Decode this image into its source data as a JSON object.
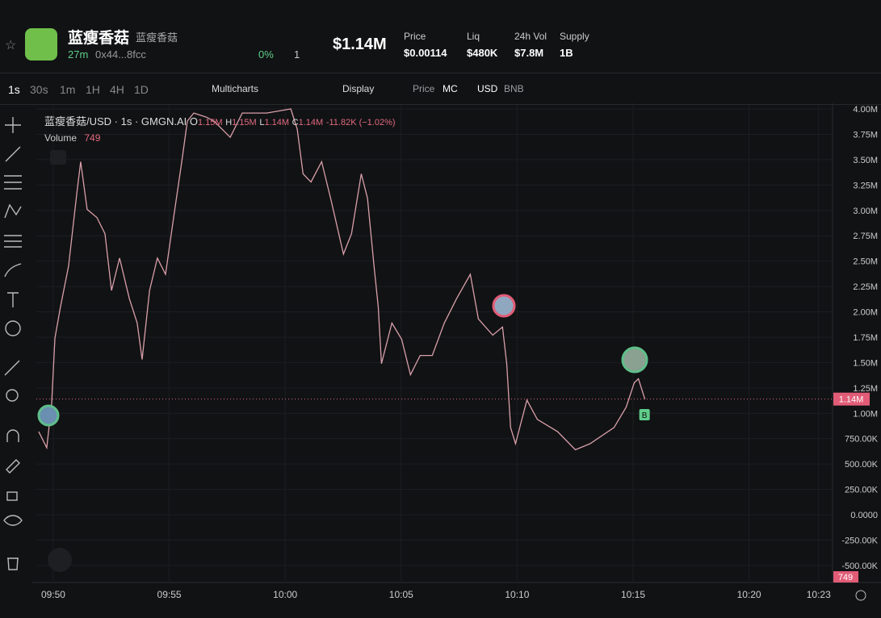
{
  "header": {
    "token_name": "蓝瘦香菇",
    "token_alias": "蓝瘦香菇",
    "age": "27m",
    "address": "0x44...8fcc",
    "holders_change": "0%",
    "count": "1",
    "market_cap": "$1.14M",
    "stats": [
      {
        "label": "Price",
        "value": "$0.00114"
      },
      {
        "label": "Liq",
        "value": "$480K"
      },
      {
        "label": "24h Vol",
        "value": "$7.8M"
      },
      {
        "label": "Supply",
        "value": "1B"
      }
    ]
  },
  "toolbar": {
    "intervals": [
      "1s",
      "30s",
      "1m",
      "1H",
      "4H",
      "1D"
    ],
    "multicharts": "Multicharts",
    "display": "Display",
    "price": "Price",
    "mc": "MC",
    "usd": "USD",
    "bnb": "BNB"
  },
  "legend": {
    "symbol": "蓝瘦香菇/USD · 1s · GMGN.AI",
    "o_label": "O",
    "o": "1.15M",
    "h_label": "H",
    "h": "1.15M",
    "l_label": "L",
    "l": "1.14M",
    "c_label": "C",
    "c": "1.14M",
    "change": "-11.82K (−1.02%)",
    "volume_label": "Volume",
    "volume": "749"
  },
  "chart_data": {
    "type": "line",
    "x": [
      -0.63,
      -0.28,
      -0.07,
      0.07,
      0.31,
      0.66,
      1.01,
      1.18,
      1.46,
      1.88,
      2.23,
      2.51,
      2.86,
      3.28,
      3.62,
      3.83,
      4.15,
      4.49,
      4.84,
      5.19,
      5.54,
      5.78,
      6.06,
      6.59,
      6.93,
      7.28,
      7.63,
      8.15,
      9.2,
      10.24,
      10.52,
      10.77,
      11.11,
      11.57,
      11.99,
      12.51,
      12.86,
      13.28,
      13.55,
      13.83,
      14.01,
      14.15,
      14.6,
      15.02,
      15.4,
      15.82,
      16.34,
      16.86,
      17.39,
      17.98,
      18.33,
      18.95,
      19.37,
      19.55,
      19.72,
      19.93,
      20.42,
      20.87,
      21.74,
      22.51,
      23.14,
      24.18,
      24.7,
      25.05,
      25.23,
      25.51
    ],
    "series": [
      {
        "color": "#d9a0aa",
        "values": [
          0.82,
          0.66,
          1.1,
          1.74,
          2.05,
          2.45,
          3.16,
          3.48,
          3.01,
          2.93,
          2.77,
          2.21,
          2.53,
          2.13,
          1.89,
          1.53,
          2.21,
          2.53,
          2.37,
          2.93,
          3.48,
          3.88,
          3.96,
          3.92,
          3.88,
          3.8,
          3.72,
          3.96,
          3.96,
          4.0,
          3.8,
          3.36,
          3.28,
          3.48,
          3.09,
          2.57,
          2.77,
          3.36,
          3.12,
          2.45,
          2.05,
          1.49,
          1.89,
          1.73,
          1.38,
          1.57,
          1.57,
          1.89,
          2.13,
          2.37,
          1.93,
          1.77,
          1.85,
          1.49,
          0.86,
          0.7,
          1.13,
          0.94,
          0.82,
          0.64,
          0.7,
          0.86,
          1.06,
          1.3,
          1.34,
          1.14
        ]
      }
    ],
    "xlim": [
      -0.73,
      33.6
    ],
    "xticks": [
      {
        "value": 0,
        "label": "09:50"
      },
      {
        "value": 5,
        "label": "09:55"
      },
      {
        "value": 10,
        "label": "10:00"
      },
      {
        "value": 15,
        "label": "10:05"
      },
      {
        "value": 20,
        "label": "10:10"
      },
      {
        "value": 25,
        "label": "10:15"
      },
      {
        "value": 30,
        "label": "10:20"
      },
      {
        "value": 33,
        "label": "10:23"
      }
    ],
    "ylim": [
      -0.668,
      4.056
    ],
    "yticks": [
      {
        "value": 4,
        "label": "4.00M"
      },
      {
        "value": 3.75,
        "label": "3.75M"
      },
      {
        "value": 3.5,
        "label": "3.50M"
      },
      {
        "value": 3.25,
        "label": "3.25M"
      },
      {
        "value": 3,
        "label": "3.00M"
      },
      {
        "value": 2.75,
        "label": "2.75M"
      },
      {
        "value": 2.5,
        "label": "2.50M"
      },
      {
        "value": 2.25,
        "label": "2.25M"
      },
      {
        "value": 2,
        "label": "2.00M"
      },
      {
        "value": 1.75,
        "label": "1.75M"
      },
      {
        "value": 1.5,
        "label": "1.50M"
      },
      {
        "value": 1.25,
        "label": "1.25M"
      },
      {
        "value": 1,
        "label": "1.00M"
      },
      {
        "value": 0.75,
        "label": "750.00K"
      },
      {
        "value": 0.5,
        "label": "500.00K"
      },
      {
        "value": 0.25,
        "label": "250.00K"
      },
      {
        "value": 0,
        "label": "0.0000"
      },
      {
        "value": -0.25,
        "label": "-250.00K"
      },
      {
        "value": -0.5,
        "label": "-500.00K"
      }
    ],
    "grid": true,
    "current": {
      "value": 1.14,
      "label": "1.14M"
    },
    "trade_marker": "B"
  }
}
